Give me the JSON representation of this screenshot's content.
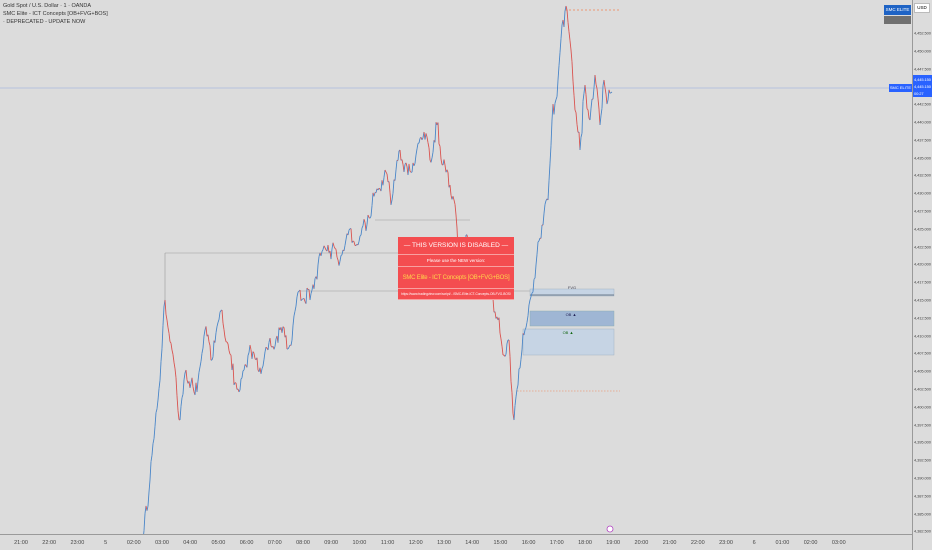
{
  "legend": {
    "symbol": "Gold Spot / U.S. Dollar · 1 · OANDA",
    "indicator": "SMC Elite - ICT Concepts [OB+FVG+BOS]",
    "notice": "· DEPRECATED - UPDATE NOW"
  },
  "dialog": {
    "title": "— THIS VERSION IS DISABLED —",
    "subtitle": "Please use the NEW version:",
    "name": "SMC Elite - ICT Concepts [OB+FVG+BOS]",
    "url": "https://www.tradingview.com/script/.../SMC-Elite-ICT-Concepts-OB-FVG-BOS/"
  },
  "top_right": {
    "button": "SMC ELITE",
    "currency": "USD"
  },
  "price": {
    "current": "4,445.150",
    "bid": "4,445.150",
    "countdown": "00:27",
    "side_label": "SMC ELITE"
  },
  "zones": {
    "fvg": "FVG",
    "ob1": "OB ▲",
    "ob2": "OB ▲"
  },
  "y_axis": [
    "4,452.500",
    "4,450.000",
    "4,447.500",
    "4,442.500",
    "4,440.000",
    "4,437.500",
    "4,435.000",
    "4,432.500",
    "4,430.000",
    "4,427.500",
    "4,425.000",
    "4,422.500",
    "4,420.000",
    "4,417.500",
    "4,415.000",
    "4,412.500",
    "4,410.000",
    "4,407.500",
    "4,405.000",
    "4,402.500",
    "4,400.000",
    "4,397.500",
    "4,395.000",
    "4,392.500",
    "4,390.000",
    "4,387.500",
    "4,385.000",
    "4,382.500"
  ],
  "x_axis": [
    "21:00",
    "22:00",
    "23:00",
    "5",
    "02:00",
    "03:00",
    "04:00",
    "05:00",
    "06:00",
    "07:00",
    "08:00",
    "09:00",
    "10:00",
    "11:00",
    "12:00",
    "13:00",
    "14:00",
    "15:00",
    "16:00",
    "17:00",
    "18:00",
    "19:00",
    "20:00",
    "21:00",
    "22:00",
    "23:00",
    "6",
    "01:00",
    "02:00",
    "03:00"
  ],
  "colors": {
    "up": "#4a86c8",
    "down": "#d9534f",
    "dialog": "#f44d50",
    "accent": "#2962ff",
    "fvg_dash": "#f08050"
  }
}
